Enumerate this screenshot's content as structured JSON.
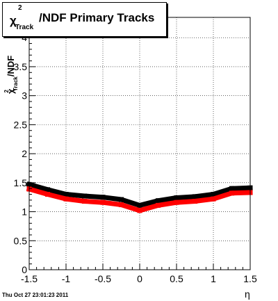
{
  "footer_timestamp": "Thu Oct 27 23:01:23 2011",
  "chart_data": {
    "type": "scatter",
    "title": {
      "chi": "χ",
      "sup": "2",
      "sub": "Track",
      "rest": "/NDF  Primary Tracks"
    },
    "xlabel": "η",
    "ylabel": {
      "chi": "χ",
      "sup": "2",
      "sub": "Track",
      "rest": "/NDF"
    },
    "xlim": [
      -1.5,
      1.5
    ],
    "ylim": [
      0,
      4.35
    ],
    "grid": true,
    "x_ticks": [
      -1.5,
      -1,
      -0.5,
      0,
      0.5,
      1,
      1.5
    ],
    "x_tick_labels": [
      "-1.5",
      "-1",
      "-0.5",
      "0",
      "0.5",
      "1",
      "1.5"
    ],
    "y_ticks": [
      0,
      0.5,
      1,
      1.5,
      2,
      2.5,
      3,
      3.5,
      4
    ],
    "y_tick_labels": [
      "0",
      "0.5",
      "1",
      "1.5",
      "2",
      "2.5",
      "3",
      "3.5",
      "4"
    ],
    "x_points": [
      -1.5,
      -1.25,
      -1.0,
      -0.75,
      -0.5,
      -0.25,
      0.0,
      0.25,
      0.5,
      0.75,
      1.0,
      1.25,
      1.5
    ],
    "series": [
      {
        "color": "#000000",
        "values": [
          1.47,
          1.38,
          1.3,
          1.27,
          1.25,
          1.21,
          1.11,
          1.19,
          1.24,
          1.26,
          1.3,
          1.4,
          1.41
        ]
      },
      {
        "color": "#ff0000",
        "values": [
          1.39,
          1.3,
          1.22,
          1.18,
          1.16,
          1.12,
          1.02,
          1.11,
          1.16,
          1.18,
          1.22,
          1.32,
          1.33
        ]
      }
    ]
  }
}
